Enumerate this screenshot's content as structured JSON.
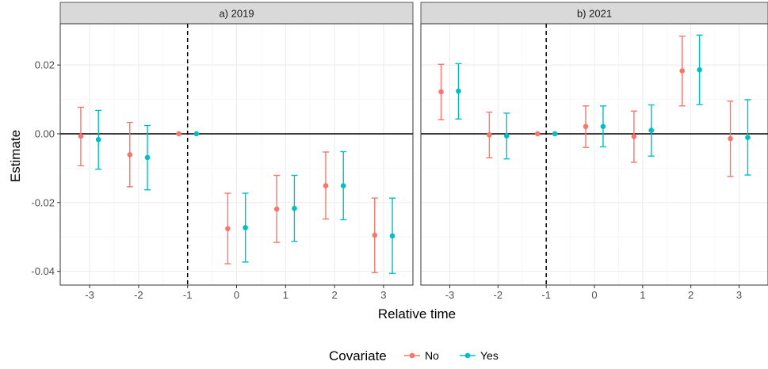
{
  "chart_data": {
    "type": "scatter",
    "subtype": "coefficient plot with error bars, faceted",
    "xlabel": "Relative time",
    "ylabel": "Estimate",
    "ylim": [
      -0.044,
      0.032
    ],
    "xlim": [
      -3.6,
      3.6
    ],
    "x_ticks": [
      -3,
      -2,
      -1,
      0,
      1,
      2,
      3
    ],
    "x_tick_labels": [
      "-3",
      "-2",
      "-1",
      "0",
      "1",
      "2",
      "3"
    ],
    "y_ticks": [
      -0.04,
      -0.02,
      0.0,
      0.02
    ],
    "y_tick_labels": [
      "-0.04",
      "-0.02",
      "0.00",
      "0.02"
    ],
    "reference_lines": {
      "horizontal_y": 0,
      "vertical_dashed_x": -1
    },
    "grid": true,
    "legend": {
      "title": "Covariate",
      "position": "bottom",
      "entries": [
        {
          "label": "No",
          "color": "#F8766D"
        },
        {
          "label": "Yes",
          "color": "#00BFC4"
        }
      ]
    },
    "dodge": 0.18,
    "panels": [
      {
        "title": "a) 2019",
        "series": [
          {
            "name": "No",
            "color": "#F8766D",
            "x": [
              -3,
              -2,
              -1,
              0,
              1,
              2,
              3
            ],
            "estimate": [
              -0.0007,
              -0.0061,
              0.0,
              -0.0276,
              -0.0219,
              -0.0151,
              -0.0295
            ],
            "lower": [
              -0.0093,
              -0.0154,
              0.0,
              -0.0378,
              -0.0316,
              -0.0248,
              -0.0404
            ],
            "upper": [
              0.0077,
              0.0033,
              0.0,
              -0.0173,
              -0.0121,
              -0.0053,
              -0.0187
            ]
          },
          {
            "name": "Yes",
            "color": "#00BFC4",
            "x": [
              -3,
              -2,
              -1,
              0,
              1,
              2,
              3
            ],
            "estimate": [
              -0.0017,
              -0.0069,
              0.0,
              -0.0273,
              -0.0217,
              -0.0151,
              -0.0297
            ],
            "lower": [
              -0.0103,
              -0.0163,
              0.0,
              -0.0373,
              -0.0313,
              -0.025,
              -0.0406
            ],
            "upper": [
              0.0068,
              0.0024,
              0.0,
              -0.0173,
              -0.0121,
              -0.0052,
              -0.0187
            ]
          }
        ]
      },
      {
        "title": "b) 2021",
        "series": [
          {
            "name": "No",
            "color": "#F8766D",
            "x": [
              -3,
              -2,
              -1,
              0,
              1,
              2,
              3
            ],
            "estimate": [
              0.0122,
              -0.0003,
              0.0,
              0.0021,
              -0.0008,
              0.0183,
              -0.0014
            ],
            "lower": [
              0.0041,
              -0.007,
              0.0,
              -0.004,
              -0.0083,
              0.0081,
              -0.0124
            ],
            "upper": [
              0.0202,
              0.0063,
              0.0,
              0.0081,
              0.0066,
              0.0284,
              0.0095
            ]
          },
          {
            "name": "Yes",
            "color": "#00BFC4",
            "x": [
              -3,
              -2,
              -1,
              0,
              1,
              2,
              3
            ],
            "estimate": [
              0.0124,
              -0.0006,
              0.0,
              0.0021,
              0.001,
              0.0186,
              -0.0011
            ],
            "lower": [
              0.0043,
              -0.0073,
              0.0,
              -0.0038,
              -0.0065,
              0.0085,
              -0.012
            ],
            "upper": [
              0.0204,
              0.006,
              0.0,
              0.0081,
              0.0084,
              0.0287,
              0.0099
            ]
          }
        ]
      }
    ]
  }
}
